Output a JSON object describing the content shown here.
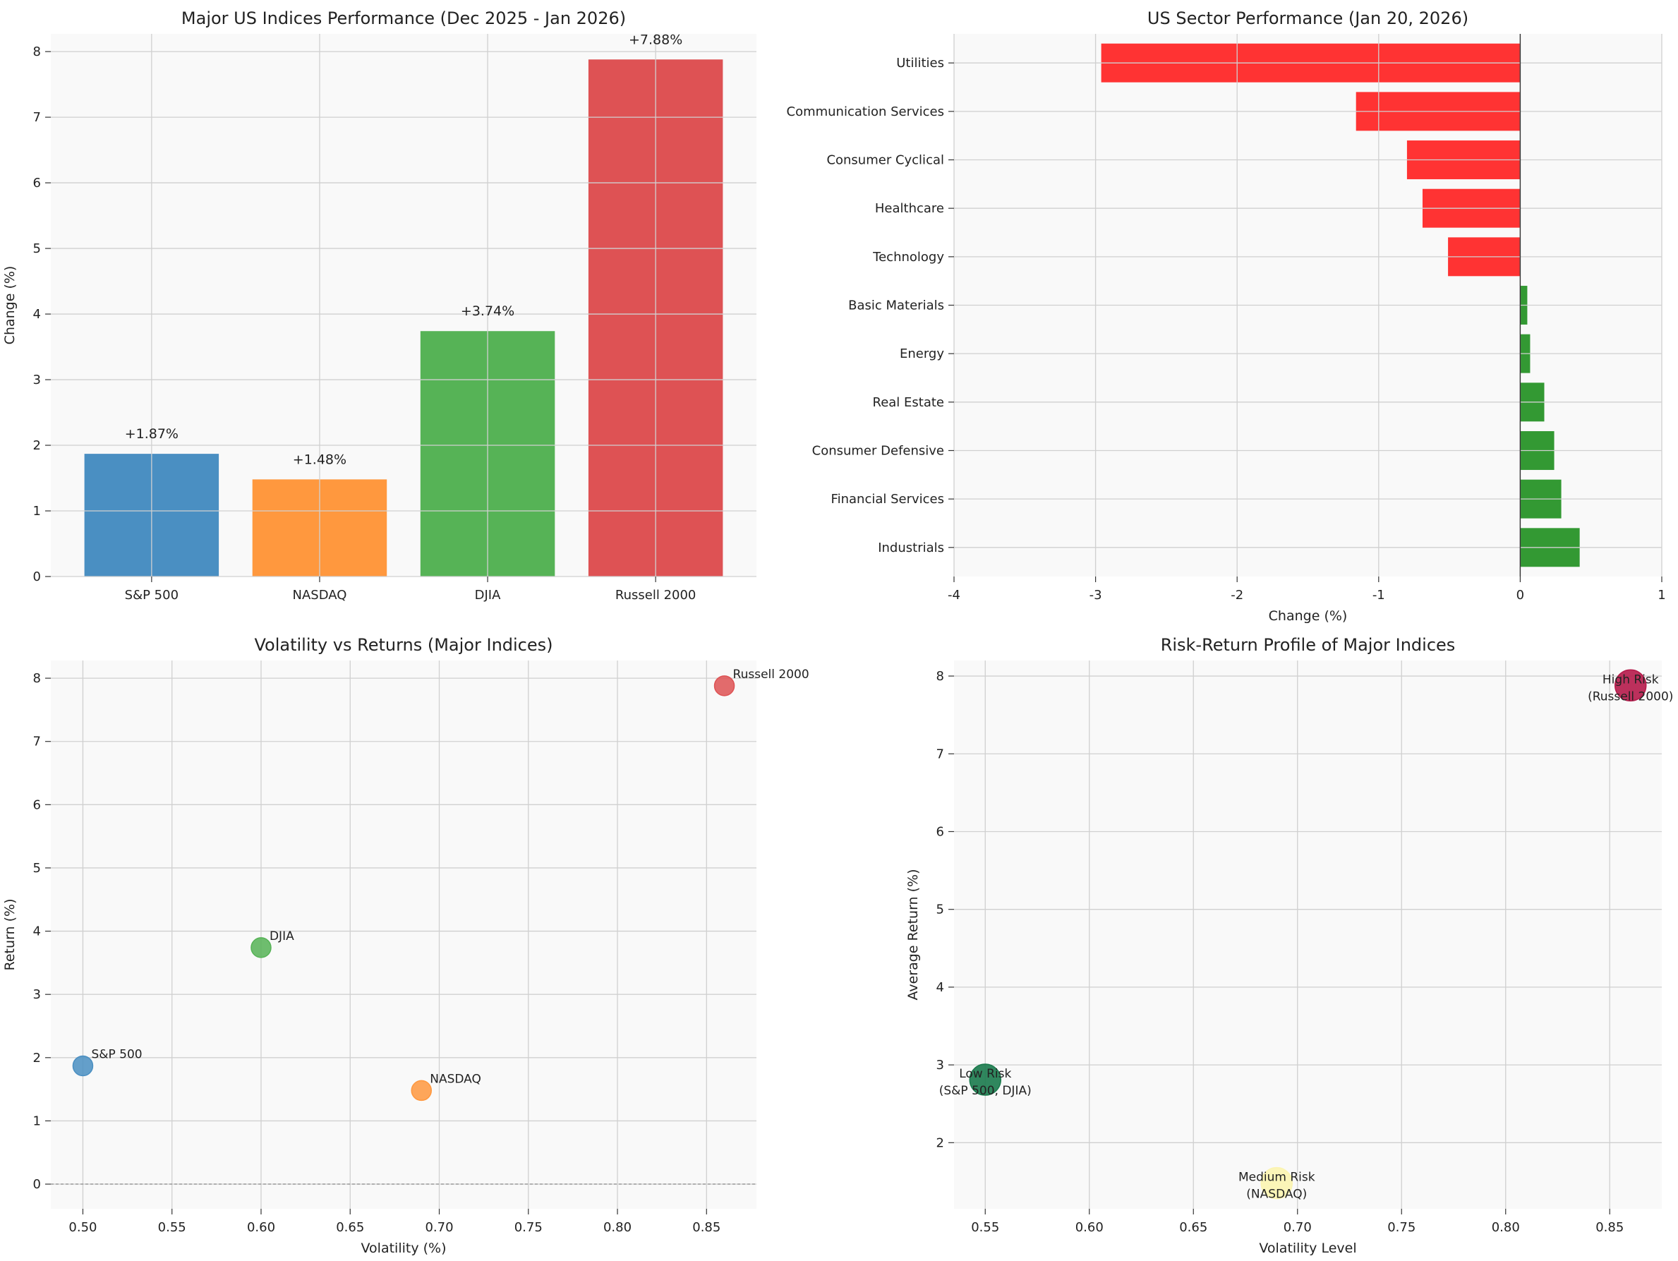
{
  "chart_data": [
    {
      "type": "bar",
      "title": "Major US Indices Performance (Dec 2025 - Jan 2026)",
      "xlabel": "",
      "ylabel": "Change (%)",
      "categories": [
        "S&P 500",
        "NASDAQ",
        "DJIA",
        "Russell 2000"
      ],
      "values": [
        1.87,
        1.48,
        3.74,
        7.88
      ],
      "data_labels": [
        "+1.87%",
        "+1.48%",
        "+3.74%",
        "+7.88%"
      ],
      "colors": [
        "#4a8fc2",
        "#ff983e",
        "#56b356",
        "#de5254"
      ],
      "ylim": [
        0,
        8.27
      ],
      "yticks": [
        0,
        1,
        2,
        3,
        4,
        5,
        6,
        7,
        8
      ],
      "grid": true
    },
    {
      "type": "bar",
      "orientation": "horizontal",
      "title": "US Sector Performance (Jan 20, 2026)",
      "xlabel": "Change (%)",
      "ylabel": "",
      "categories": [
        "Utilities",
        "Communication Services",
        "Consumer Cyclical",
        "Healthcare",
        "Technology",
        "Basic Materials",
        "Energy",
        "Real Estate",
        "Consumer Defensive",
        "Financial Services",
        "Industrials"
      ],
      "values": [
        -2.96,
        -1.16,
        -0.8,
        -0.69,
        -0.51,
        0.05,
        0.07,
        0.17,
        0.24,
        0.29,
        0.42
      ],
      "negative_color": "#ff3333",
      "positive_color": "#339933",
      "xlim": [
        -4,
        1
      ],
      "xticks": [
        -4,
        -3,
        -2,
        -1,
        0,
        1
      ],
      "xtick_labels": [
        "-4",
        "-3",
        "-2",
        "-1",
        "0",
        "1"
      ],
      "grid": true
    },
    {
      "type": "scatter",
      "title": "Volatility vs Returns (Major Indices)",
      "xlabel": "Volatility (%)",
      "ylabel": "Return (%)",
      "points": [
        {
          "label": "S&P 500",
          "x": 0.5,
          "y": 1.87,
          "color": "#4a8fc2"
        },
        {
          "label": "NASDAQ",
          "x": 0.69,
          "y": 1.48,
          "color": "#ff983e"
        },
        {
          "label": "DJIA",
          "x": 0.6,
          "y": 3.74,
          "color": "#56b356"
        },
        {
          "label": "Russell 2000",
          "x": 0.86,
          "y": 7.88,
          "color": "#de5254"
        }
      ],
      "xlim": [
        0.482,
        0.878
      ],
      "ylim": [
        -0.39,
        8.28
      ],
      "xticks": [
        0.5,
        0.55,
        0.6,
        0.65,
        0.7,
        0.75,
        0.8,
        0.85
      ],
      "xtick_labels": [
        "0.50",
        "0.55",
        "0.60",
        "0.65",
        "0.70",
        "0.75",
        "0.80",
        "0.85"
      ],
      "yticks": [
        0,
        1,
        2,
        3,
        4,
        5,
        6,
        7,
        8
      ],
      "zero_line": true,
      "grid": true
    },
    {
      "type": "scatter",
      "title": "Risk-Return Profile of Major Indices",
      "xlabel": "Volatility Level",
      "ylabel": "Average Return (%)",
      "points": [
        {
          "label_line1": "Low Risk",
          "label_line2": "(S&P 500, DJIA)",
          "x": 0.55,
          "y": 2.81,
          "color": "#1a7a4c"
        },
        {
          "label_line1": "Medium Risk",
          "label_line2": "(NASDAQ)",
          "x": 0.69,
          "y": 1.48,
          "color": "#fbf4b0"
        },
        {
          "label_line1": "High Risk",
          "label_line2": "(Russell 2000)",
          "x": 0.86,
          "y": 7.88,
          "color": "#b51a4a"
        }
      ],
      "xlim": [
        0.535,
        0.875
      ],
      "ylim": [
        1.15,
        8.2
      ],
      "xticks": [
        0.55,
        0.6,
        0.65,
        0.7,
        0.75,
        0.8,
        0.85
      ],
      "xtick_labels": [
        "0.55",
        "0.60",
        "0.65",
        "0.70",
        "0.75",
        "0.80",
        "0.85"
      ],
      "yticks": [
        2,
        3,
        4,
        5,
        6,
        7,
        8
      ],
      "grid": true
    }
  ]
}
